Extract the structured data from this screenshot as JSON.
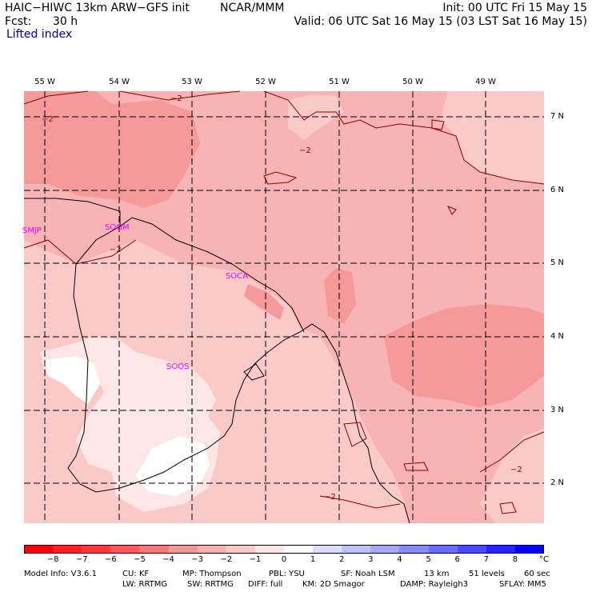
{
  "header": {
    "model_title": "HAIC−HIWC 13km ARW−GFS init",
    "agency": "NCAR/MMM",
    "init": "Init: 00 UTC Fri 15 May 15",
    "fcst_label": "Fcst:",
    "fcst_value": "30 h",
    "valid": "Valid: 06 UTC Sat 16 May 15 (03 LST Sat 16 May 15)",
    "field": "Lifted index"
  },
  "map": {
    "lon_labels": [
      "55 W",
      "54 W",
      "53 W",
      "52 W",
      "51 W",
      "50 W",
      "49 W"
    ],
    "lat_labels": [
      "7 N",
      "6 N",
      "5 N",
      "4 N",
      "3 N",
      "2 N"
    ],
    "stations": [
      "SMJP",
      "SOGM",
      "SOCA",
      "SOOS"
    ],
    "contour_labels": [
      "−2",
      "−2",
      "−2",
      "−2",
      "−2",
      "−2"
    ],
    "colors": {
      "li_minus4": "#f6999a",
      "li_minus3": "#f8b3b4",
      "li_minus2": "#fcc9c9",
      "li_minus1": "#fde6e6",
      "li_zero": "#ffffff",
      "station": "#ff00ff",
      "contour": "#8b0000"
    }
  },
  "colorbar": {
    "ticks": [
      "−8",
      "−7",
      "−6",
      "−5",
      "−4",
      "−3",
      "−2",
      "−1",
      "0",
      "1",
      "2",
      "3",
      "4",
      "5",
      "6",
      "7",
      "8"
    ],
    "unit": "°C",
    "colors": [
      "#ff0000",
      "#ff2020",
      "#ff3a3a",
      "#ff5858",
      "#ff7676",
      "#f99596",
      "#fbb0b1",
      "#fdcaca",
      "#ffe6e6",
      "#ffffff",
      "#dcdcff",
      "#c2c2ff",
      "#a6a6ff",
      "#8a8aff",
      "#6c6cff",
      "#4a4aff",
      "#2626ff",
      "#0000ff"
    ]
  },
  "footer": {
    "line1": [
      "Model Info: V3.6.1",
      "CU: KF",
      "MP: Thompson",
      "PBL: YSU",
      "SF: Noah LSM",
      "13 km",
      "51 levels",
      "60 sec"
    ],
    "line2": [
      "LW: RRTMG",
      "SW: RRTMG",
      "DIFF: full",
      "KM: 2D Smagor",
      "DAMP: Rayleigh3",
      "SFLAY: MM5"
    ]
  }
}
